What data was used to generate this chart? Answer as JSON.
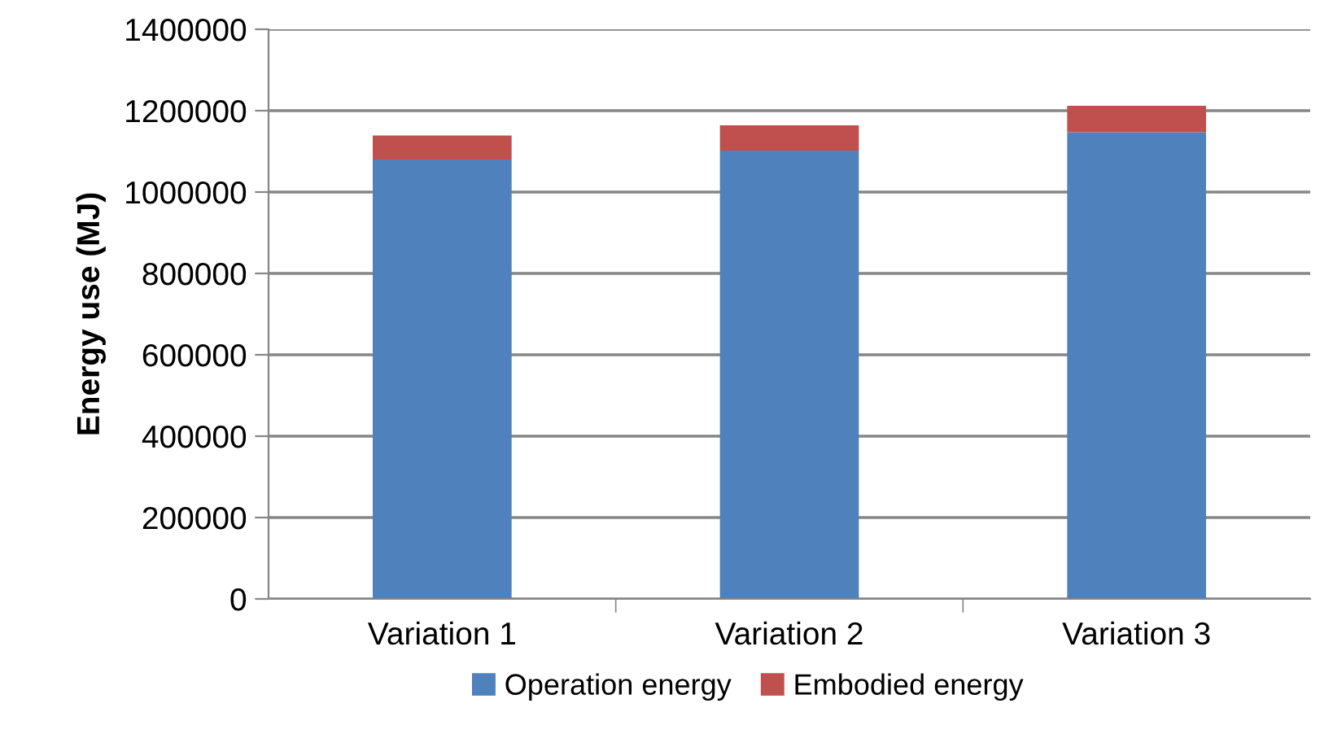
{
  "chart_data": {
    "type": "bar",
    "stacked": true,
    "ylabel": "Energy use (MJ)",
    "categories": [
      "Variation 1",
      "Variation 2",
      "Variation 3"
    ],
    "series": [
      {
        "name": "Operation energy",
        "color": "#4f81bd",
        "values": [
          1080000,
          1102000,
          1147000
        ]
      },
      {
        "name": "Embodied energy",
        "color": "#c0504d",
        "values": [
          59000,
          62000,
          65000
        ]
      }
    ],
    "ylim": [
      0,
      1400000
    ],
    "yticks": [
      0,
      200000,
      400000,
      600000,
      800000,
      1000000,
      1200000,
      1400000
    ],
    "grid": "y",
    "legend": "bottom"
  }
}
